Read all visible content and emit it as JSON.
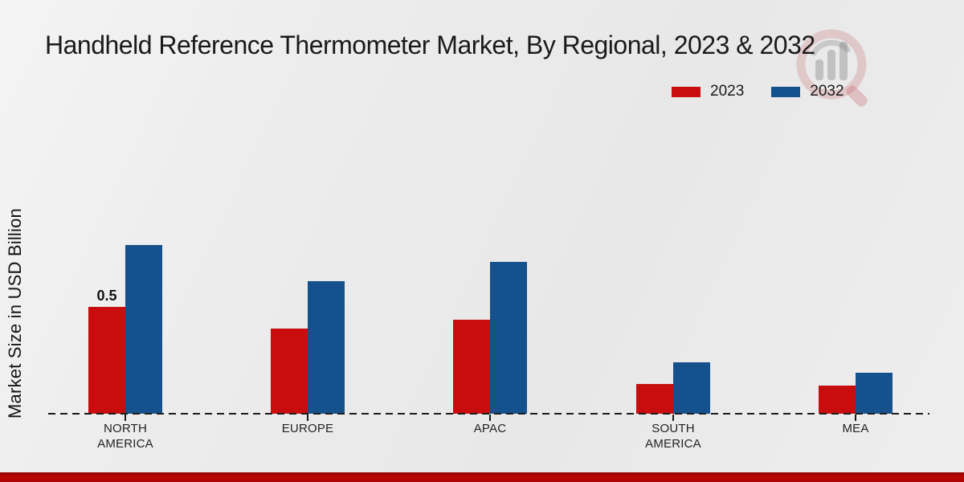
{
  "title": "Handheld Reference Thermometer Market, By Regional, 2023 & 2032",
  "ylabel": "Market Size in USD Billion",
  "legend": [
    {
      "label": "2023",
      "color": "#c90d0e"
    },
    {
      "label": "2032",
      "color": "#15518c"
    }
  ],
  "watermark_icon": "magnifier-bar-chart-logo",
  "colors": {
    "series_2023": "#c90d0e",
    "series_2032": "#15518c",
    "footer_strip": "#b00505",
    "axis": "#1c1c1c"
  },
  "chart_data": {
    "type": "bar",
    "categories": [
      "NORTH AMERICA",
      "EUROPE",
      "APAC",
      "SOUTH AMERICA",
      "MEA"
    ],
    "series": [
      {
        "name": "2023",
        "color": "#c90d0e",
        "values": [
          0.5,
          0.4,
          0.44,
          0.14,
          0.13
        ]
      },
      {
        "name": "2032",
        "color": "#15518c",
        "values": [
          0.79,
          0.62,
          0.71,
          0.24,
          0.19
        ]
      }
    ],
    "data_labels": [
      {
        "category_index": 0,
        "series_index": 0,
        "text": "0.5"
      }
    ],
    "title": "Handheld Reference Thermometer Market, By Regional, 2023 & 2032",
    "xlabel": "",
    "ylabel": "Market Size in USD Billion",
    "ylim": [
      0,
      1.0
    ],
    "grid": false,
    "baseline_style": "dashed",
    "legend_position": "top-right"
  }
}
